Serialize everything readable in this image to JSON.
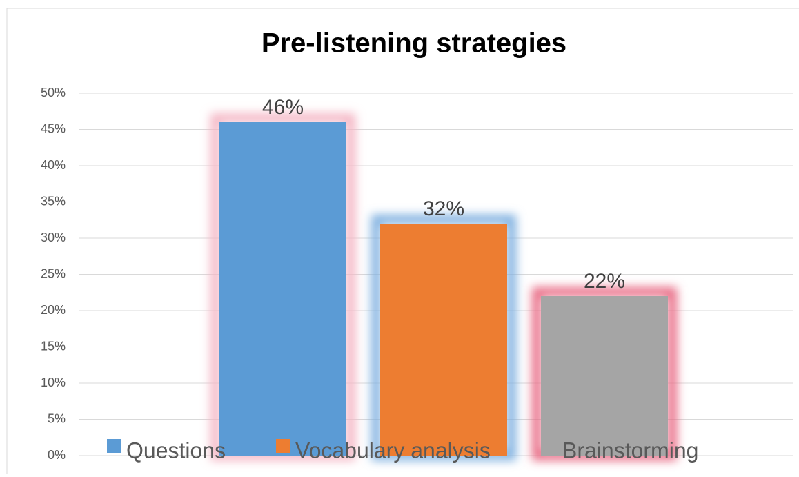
{
  "chart_data": {
    "type": "bar",
    "title": "Pre-listening strategies",
    "series": [
      {
        "name": "Questions",
        "color": "#5b9bd5",
        "glow": "#f4b6c4",
        "values": [
          46
        ],
        "value_labels": [
          "46%"
        ]
      },
      {
        "name": "Vocabulary analysis",
        "color": "#ed7d31",
        "glow": "#7fb0e0",
        "values": [
          32
        ],
        "value_labels": [
          "32%"
        ]
      },
      {
        "name": "Brainstorming",
        "color": "#a5a5a5",
        "glow": "#e86a84",
        "values": [
          22
        ],
        "value_labels": [
          "22%"
        ]
      }
    ],
    "ylim": [
      0,
      50
    ],
    "yticks": [
      {
        "value": 0,
        "label": "0%"
      },
      {
        "value": 5,
        "label": "5%"
      },
      {
        "value": 10,
        "label": "10%"
      },
      {
        "value": 15,
        "label": "15%"
      },
      {
        "value": 20,
        "label": "20%"
      },
      {
        "value": 25,
        "label": "25%"
      },
      {
        "value": 30,
        "label": "30%"
      },
      {
        "value": 35,
        "label": "35%"
      },
      {
        "value": 40,
        "label": "40%"
      },
      {
        "value": 45,
        "label": "45%"
      },
      {
        "value": 50,
        "label": "50%"
      }
    ],
    "grid": true,
    "legend": "bottom"
  }
}
